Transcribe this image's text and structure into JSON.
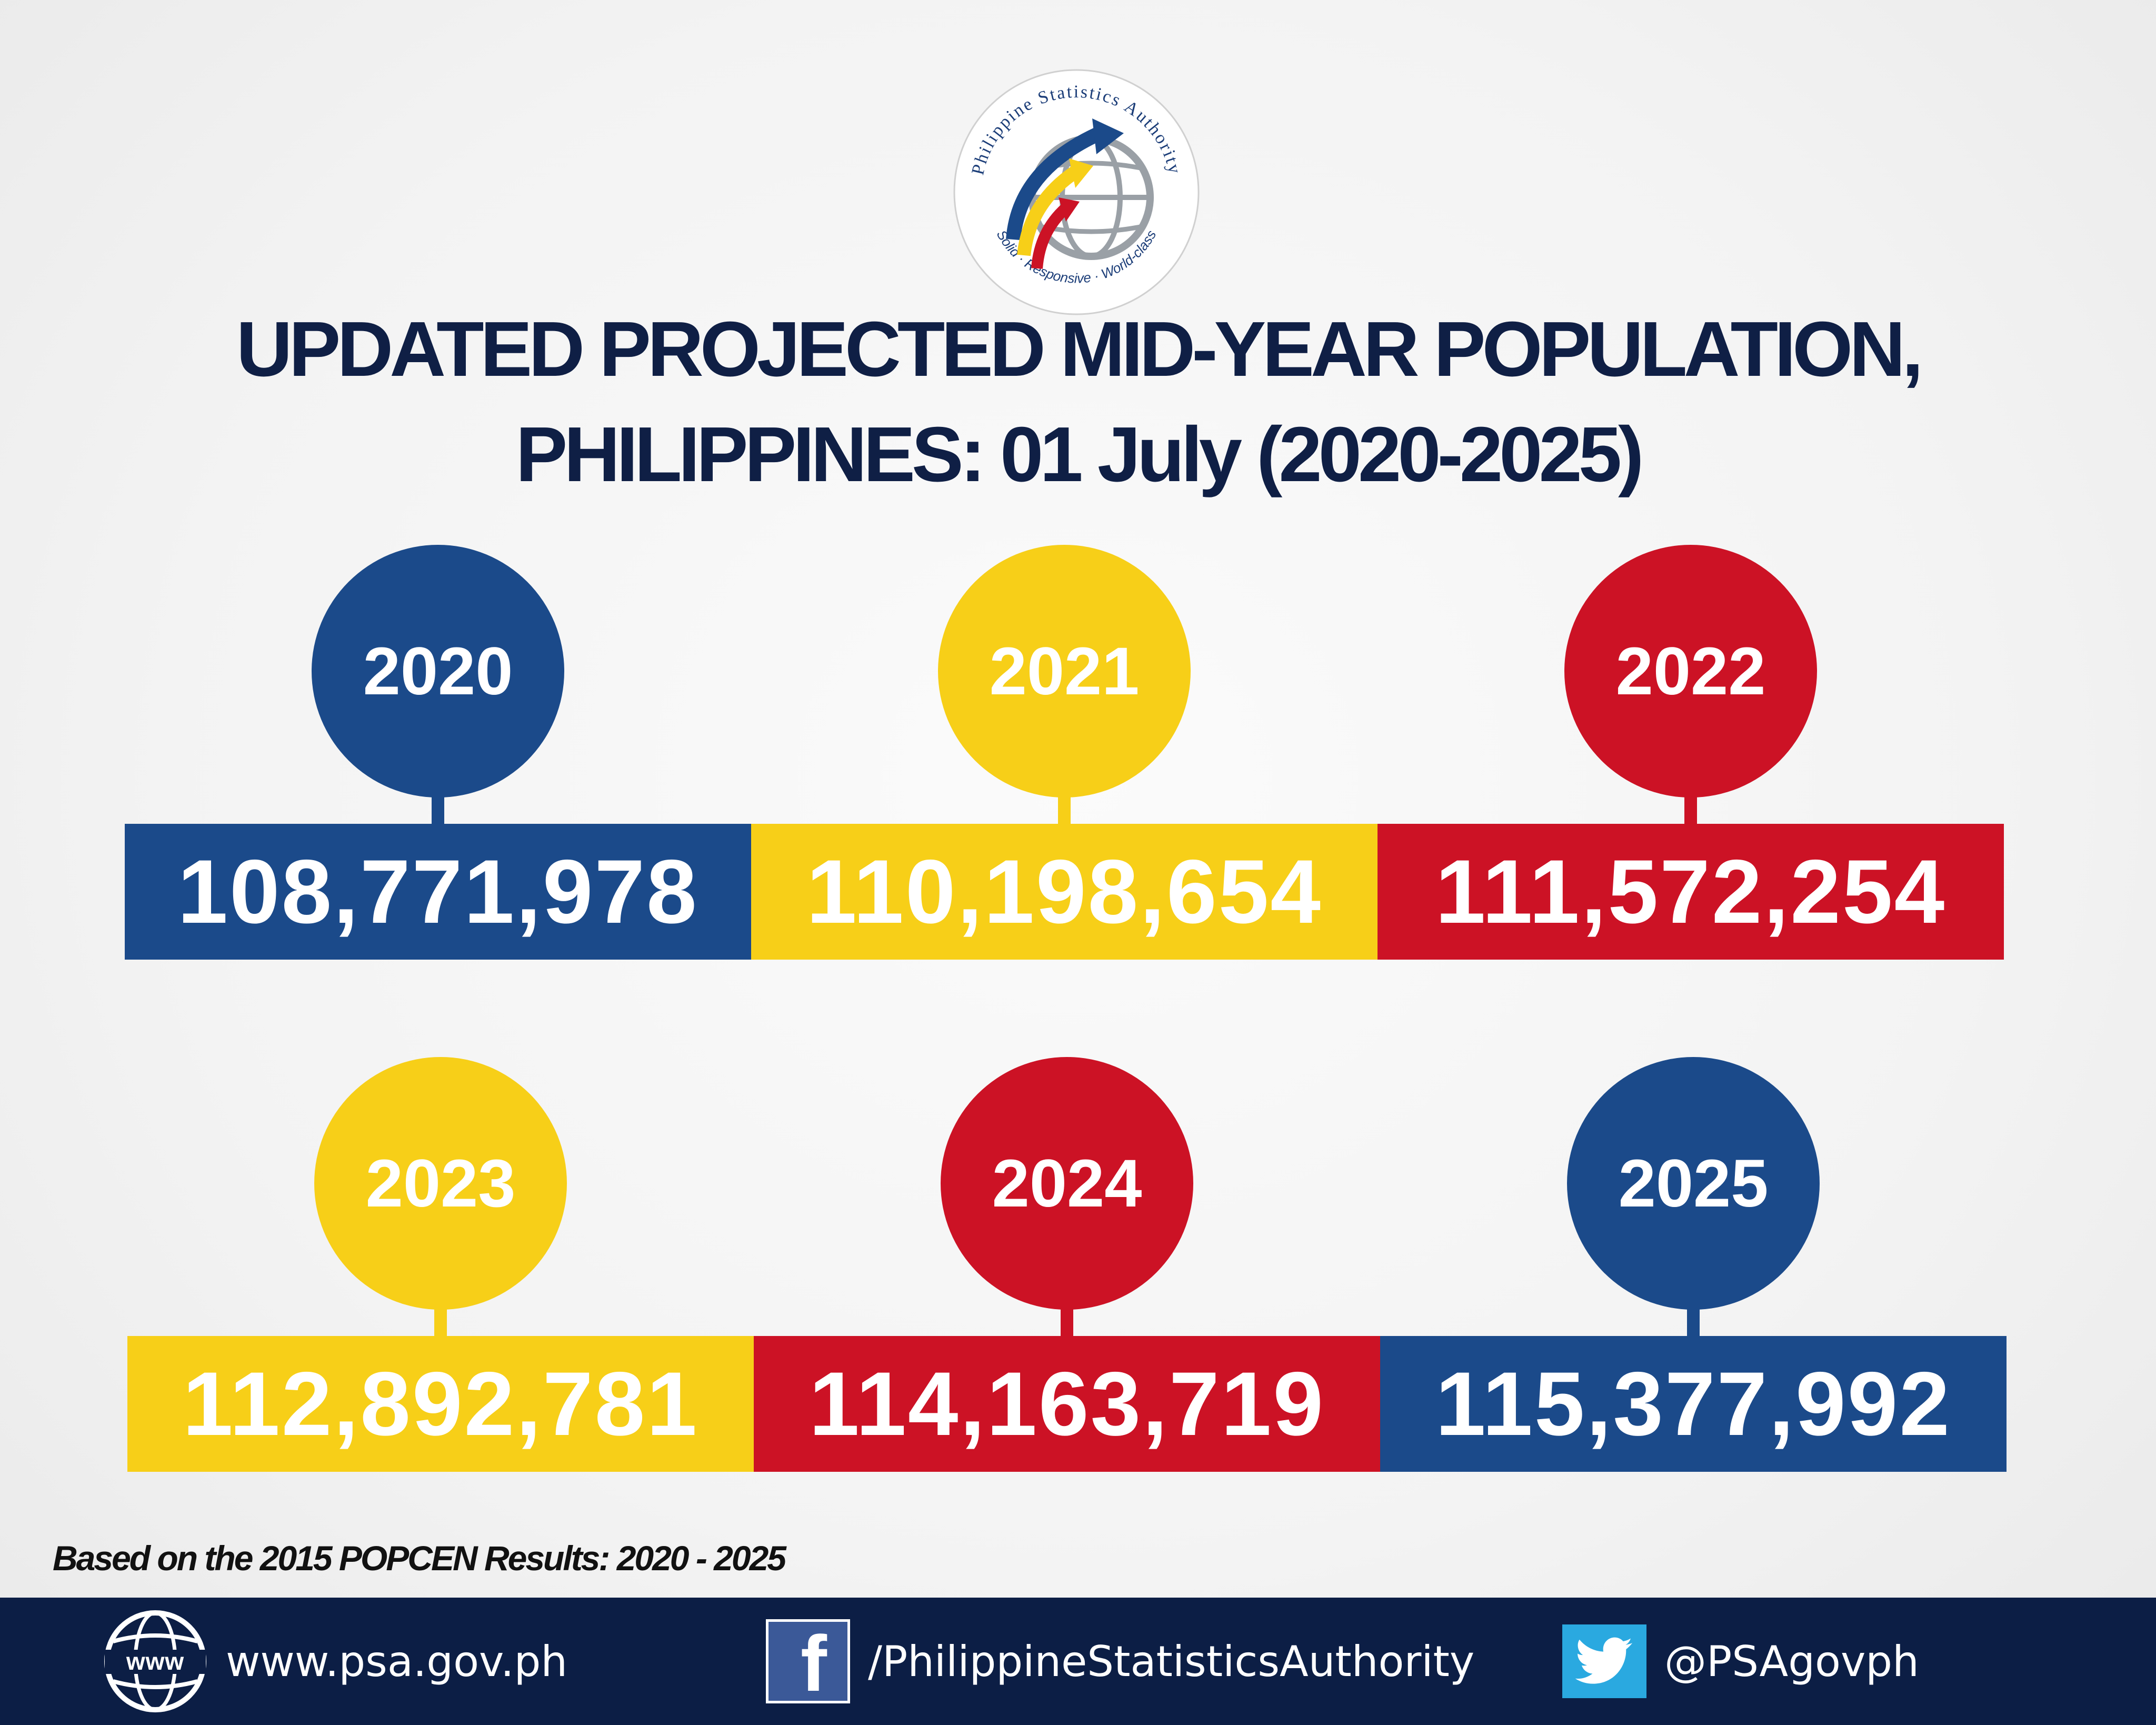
{
  "logo": {
    "arc_text": "Philippine Statistics Authority",
    "tagline": "Solid · Responsive · World-class",
    "icon": "psa-globe-arrows-icon"
  },
  "title": {
    "line1": "UPDATED PROJECTED MID-YEAR POPULATION,",
    "line2": "PHILIPPINES: 01 July (2020-2025)"
  },
  "colors": {
    "blue": "#1b4a8a",
    "yellow": "#f7cf18",
    "red": "#cc1225",
    "navy": "#0c1e45"
  },
  "population": [
    {
      "year": "2020",
      "value": "108,771,978",
      "color": "#1b4a8a"
    },
    {
      "year": "2021",
      "value": "110,198,654",
      "color": "#f7cf18"
    },
    {
      "year": "2022",
      "value": "111,572,254",
      "color": "#cc1225"
    },
    {
      "year": "2023",
      "value": "112,892,781",
      "color": "#f7cf18"
    },
    {
      "year": "2024",
      "value": "114,163,719",
      "color": "#cc1225"
    },
    {
      "year": "2025",
      "value": "115,377,992",
      "color": "#1b4a8a"
    }
  ],
  "footnote": "Based on the 2015 POPCEN Results: 2020 - 2025",
  "footer": {
    "website": {
      "icon": "www-globe-icon",
      "text": "www.psa.gov.ph"
    },
    "facebook": {
      "icon": "facebook-icon",
      "text": "/PhilippineStatisticsAuthority"
    },
    "twitter": {
      "icon": "twitter-icon",
      "text": "@PSAgovph"
    }
  }
}
